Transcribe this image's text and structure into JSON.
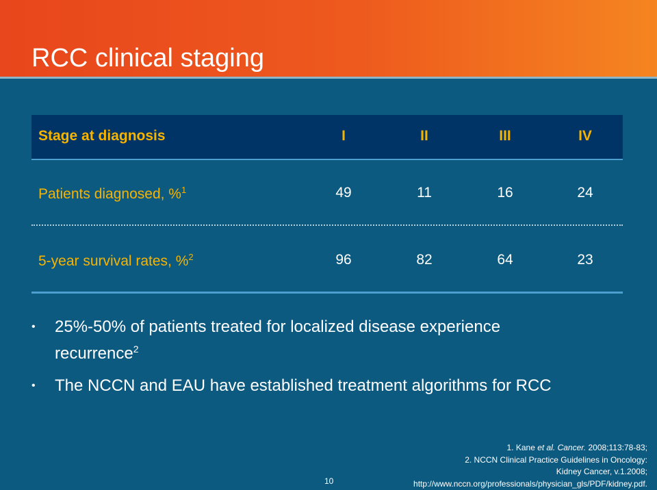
{
  "slide": {
    "title": "RCC clinical staging",
    "page_number": "10"
  },
  "table": {
    "header_label": "Stage at diagnosis",
    "stages": [
      "I",
      "II",
      "III",
      "IV"
    ],
    "rows": [
      {
        "label": "Patients diagnosed, %",
        "ref": "1",
        "values": [
          "49",
          "11",
          "16",
          "24"
        ]
      },
      {
        "label": "5-year survival rates, %",
        "ref": "2",
        "values": [
          "96",
          "82",
          "64",
          "23"
        ]
      }
    ]
  },
  "bullets": [
    {
      "line1": "25%-50% of patients treated for localized disease experience",
      "line2": "recurrence",
      "ref": "2"
    },
    {
      "line1": "The NCCN and EAU have established treatment algorithms for RCC"
    }
  ],
  "references": {
    "r1_prefix": "1.  Kane ",
    "r1_etal": "et al.",
    "r1_journal": " Cancer.",
    "r1_rest": " 2008;113:78-83;",
    "r2_line1": "2. NCCN Clinical Practice Guidelines in Oncology:",
    "r2_line2": "Kidney Cancer, v.1.2008;",
    "r2_line3": "http://www.nccn.org/professionals/physician_gls/PDF/kidney.pdf."
  },
  "colors": {
    "header_orange": "#ee5a1e",
    "background": "#0d5a80",
    "table_header": "#003366",
    "accent_yellow": "#f6b400"
  }
}
